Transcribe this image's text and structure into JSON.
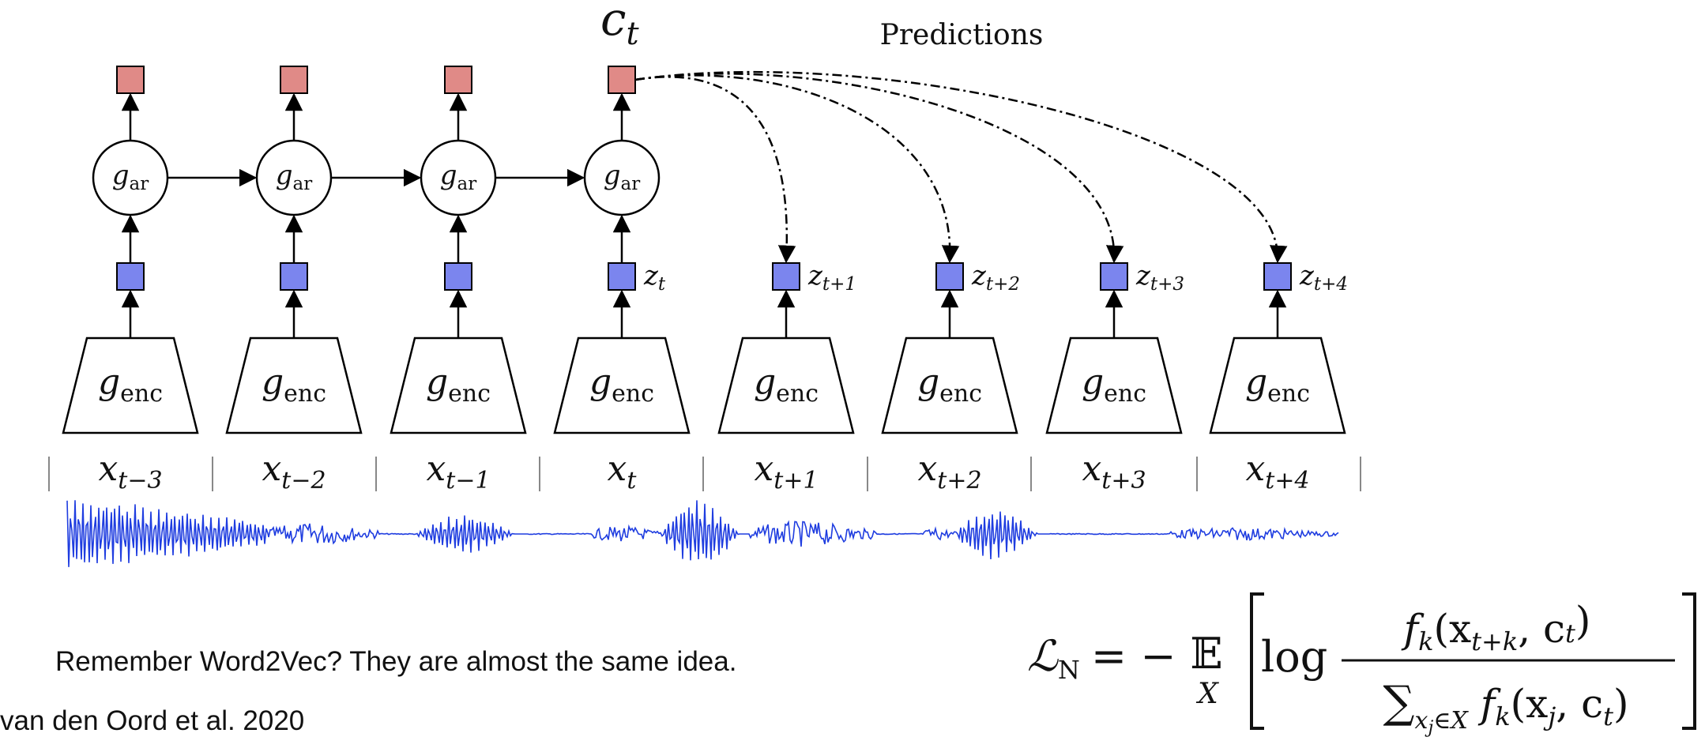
{
  "diagram": {
    "context_label": {
      "base": "c",
      "sub": "t"
    },
    "predictions_label": "Predictions",
    "ar_label": {
      "base": "g",
      "sub": "ar"
    },
    "enc_label": {
      "base": "g",
      "sub": "enc"
    },
    "columns": [
      {
        "x_label": {
          "base": "x",
          "sub": "t−3"
        },
        "z_label": null,
        "has_ar": true,
        "has_context": true
      },
      {
        "x_label": {
          "base": "x",
          "sub": "t−2"
        },
        "z_label": null,
        "has_ar": true,
        "has_context": true
      },
      {
        "x_label": {
          "base": "x",
          "sub": "t−1"
        },
        "z_label": null,
        "has_ar": true,
        "has_context": true
      },
      {
        "x_label": {
          "base": "x",
          "sub": "t"
        },
        "z_label": {
          "base": "z",
          "sub": "t"
        },
        "has_ar": true,
        "has_context": true
      },
      {
        "x_label": {
          "base": "x",
          "sub": "t+1"
        },
        "z_label": {
          "base": "z",
          "sub": "t+1"
        },
        "has_ar": false,
        "has_context": false
      },
      {
        "x_label": {
          "base": "x",
          "sub": "t+2"
        },
        "z_label": {
          "base": "z",
          "sub": "t+2"
        },
        "has_ar": false,
        "has_context": false
      },
      {
        "x_label": {
          "base": "x",
          "sub": "t+3"
        },
        "z_label": {
          "base": "z",
          "sub": "t+3"
        },
        "has_ar": false,
        "has_context": false
      },
      {
        "x_label": {
          "base": "x",
          "sub": "t+4"
        },
        "z_label": {
          "base": "z",
          "sub": "t+4"
        },
        "has_ar": false,
        "has_context": false
      }
    ],
    "colors": {
      "context_box": "#E08A87",
      "z_box": "#7B85EE",
      "waveform": "#1F3DE0",
      "stroke": "#000000"
    }
  },
  "formula": {
    "lhs": "ℒ",
    "lhs_sub": "N",
    "equals_minus": "= −",
    "expectation": "𝔼",
    "expectation_sub": "X",
    "log": "log",
    "numerator": "f",
    "numerator_sub": "k",
    "numerator_args": "(x",
    "numerator_args_sub": "t+k",
    "numerator_args_end": ", c",
    "numerator_args_end_sub": "t",
    "numerator_close": ")",
    "sum_symbol": "∑",
    "sum_sub": "x",
    "sum_sub_sub": "j",
    "sum_sub_end": "∈X",
    "denominator_f": " f",
    "denominator_f_sub": "k",
    "denominator_args": "(x",
    "denominator_args_sub": "j",
    "denominator_args_end": ", c",
    "denominator_args_end_sub": "t",
    "denominator_close": ")"
  },
  "note": "Remember Word2Vec? They are almost the same idea.",
  "citation": "van den Oord et al. 2020"
}
